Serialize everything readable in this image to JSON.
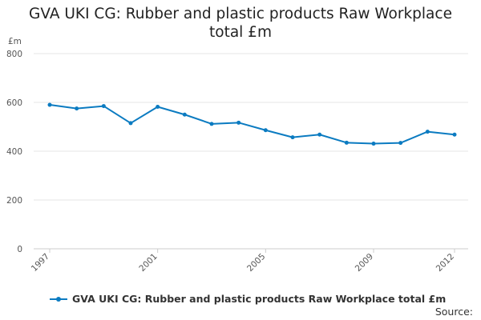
{
  "chart_data": {
    "type": "line",
    "title_lines": [
      "GVA UKI CG: Rubber and plastic products Raw Workplace",
      "total £m"
    ],
    "ylabel": "£m",
    "ylim": [
      0,
      800
    ],
    "yticks": [
      0,
      200,
      400,
      600,
      800
    ],
    "x": [
      1997,
      1998,
      1999,
      2000,
      2001,
      2002,
      2003,
      2004,
      2005,
      2006,
      2007,
      2008,
      2009,
      2010,
      2011,
      2012
    ],
    "xticks": [
      1997,
      2001,
      2005,
      2009,
      2012
    ],
    "grid": true,
    "legend_position": "bottom",
    "series": [
      {
        "name": "GVA UKI CG: Rubber and plastic products Raw Workplace total £m",
        "color": "#0b7bc1",
        "values": [
          590,
          575,
          585,
          515,
          582,
          550,
          512,
          517,
          486,
          457,
          468,
          435,
          431,
          434,
          480,
          468
        ]
      }
    ]
  },
  "footer": {
    "source_label": "Source:"
  }
}
